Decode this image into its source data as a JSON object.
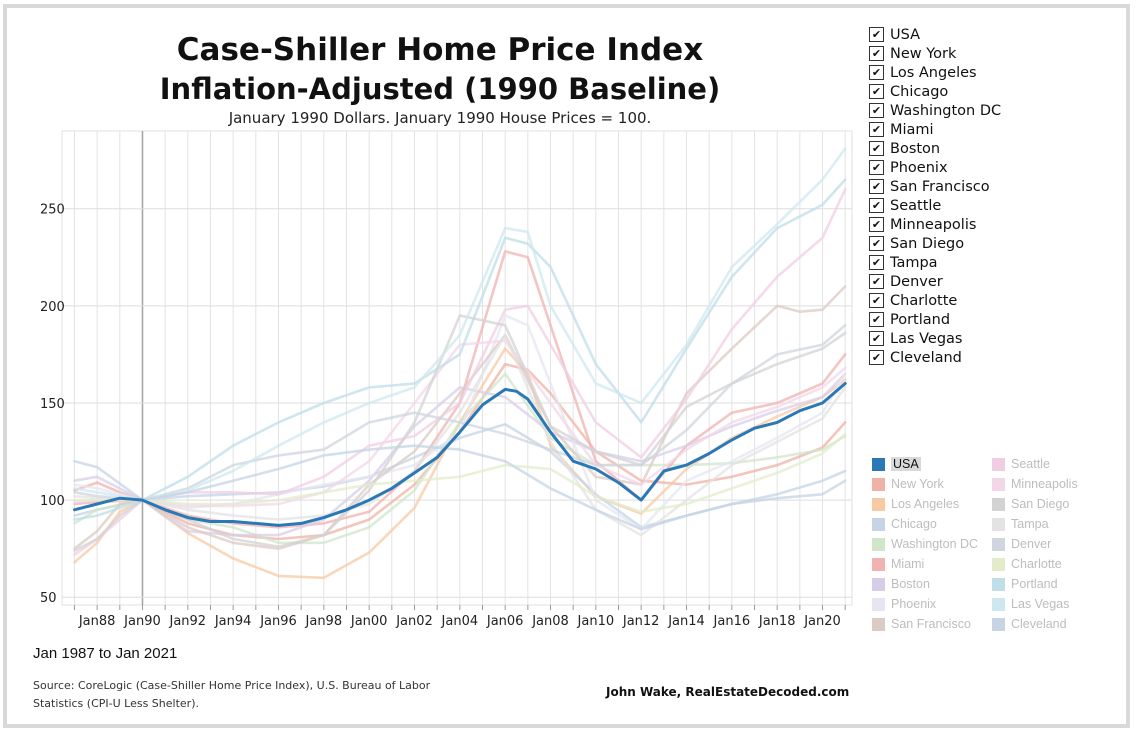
{
  "title_line1": "Case-Shiller Home Price Index",
  "title_line2": "Inflation-Adjusted (1990 Baseline)",
  "subtitle": "January 1990 Dollars. January 1990 House Prices = 100.",
  "date_range": "Jan 1987 to Jan 2021",
  "source": "Source: CoreLogic (Case-Shiller Home Price Index), U.S. Bureau of Labor Statistics (CPI-U Less Shelter).",
  "credit": "John Wake, RealEstateDecoded.com",
  "filter_items": [
    "USA",
    "New York",
    "Los Angeles",
    "Chicago",
    "Washington DC",
    "Miami",
    "Boston",
    "Phoenix",
    "San Francisco",
    "Seattle",
    "Minneapolis",
    "San Diego",
    "Tampa",
    "Denver",
    "Charlotte",
    "Portland",
    "Las Vegas",
    "Cleveland"
  ],
  "check_glyph": "✔",
  "highlighted_series": "USA",
  "colors": {
    "USA": "#2a78b5",
    "New York": "#f0b1a6",
    "Los Angeles": "#f7c9a4",
    "Chicago": "#c6d4e6",
    "Washington DC": "#cfe6c9",
    "Miami": "#f2b2b2",
    "Boston": "#d8cde8",
    "Phoenix": "#e6e6f2",
    "San Francisco": "#dccbc4",
    "Seattle": "#f0cde3",
    "Minneapolis": "#f3d7e8",
    "San Diego": "#d3d3d3",
    "Tampa": "#e3e3e3",
    "Denver": "#cfd6df",
    "Charlotte": "#e2ecc9",
    "Portland": "#bfdee9",
    "Las Vegas": "#cde8ef",
    "Cleveland": "#c6d4e6"
  },
  "chart_data": {
    "type": "line",
    "title": "Case-Shiller Home Price Index Inflation-Adjusted (1990 Baseline)",
    "subtitle": "January 1990 Dollars. January 1990 House Prices = 100.",
    "xlim": [
      1987.0,
      2021.0
    ],
    "ylim": [
      50,
      290
    ],
    "yticks": [
      50,
      100,
      150,
      200,
      250
    ],
    "xticks": [
      {
        "x": 1988,
        "label": "Jan88"
      },
      {
        "x": 1990,
        "label": "Jan90"
      },
      {
        "x": 1992,
        "label": "Jan92"
      },
      {
        "x": 1994,
        "label": "Jan94"
      },
      {
        "x": 1996,
        "label": "Jan96"
      },
      {
        "x": 1998,
        "label": "Jan98"
      },
      {
        "x": 2000,
        "label": "Jan00"
      },
      {
        "x": 2002,
        "label": "Jan02"
      },
      {
        "x": 2004,
        "label": "Jan04"
      },
      {
        "x": 2006,
        "label": "Jan06"
      },
      {
        "x": 2008,
        "label": "Jan08"
      },
      {
        "x": 2010,
        "label": "Jan10"
      },
      {
        "x": 2012,
        "label": "Jan12"
      },
      {
        "x": 2014,
        "label": "Jan14"
      },
      {
        "x": 2016,
        "label": "Jan16"
      },
      {
        "x": 2018,
        "label": "Jan18"
      },
      {
        "x": 2020,
        "label": "Jan20"
      }
    ],
    "reference_line_x": 1990,
    "grid": true,
    "legend_position": "right",
    "series": [
      {
        "name": "USA",
        "x": [
          1987,
          1988,
          1989,
          1990,
          1991,
          1992,
          1993,
          1994,
          1995,
          1996,
          1997,
          1998,
          1999,
          2000,
          2001,
          2002,
          2003,
          2004,
          2005,
          2006,
          2006.5,
          2007,
          2008,
          2009,
          2010,
          2011,
          2012,
          2013,
          2014,
          2015,
          2016,
          2017,
          2018,
          2019,
          2020,
          2021
        ],
        "values": [
          95,
          98,
          101,
          100,
          95,
          91,
          89,
          89,
          88,
          87,
          88,
          91,
          95,
          100,
          106,
          114,
          122,
          135,
          149,
          157,
          156,
          152,
          135,
          120,
          116,
          109,
          100,
          115,
          118,
          124,
          131,
          137,
          140,
          146,
          150,
          160
        ]
      },
      {
        "name": "New York",
        "x": [
          1987,
          1988,
          1989,
          1990,
          1992,
          1994,
          1996,
          1998,
          2000,
          2002,
          2004,
          2006,
          2007,
          2008,
          2010,
          2012,
          2014,
          2016,
          2018,
          2020,
          2021
        ],
        "values": [
          105,
          109,
          104,
          100,
          88,
          82,
          80,
          82,
          90,
          108,
          135,
          170,
          167,
          155,
          125,
          110,
          108,
          112,
          118,
          127,
          140
        ]
      },
      {
        "name": "Los Angeles",
        "x": [
          1987,
          1988,
          1989,
          1990,
          1992,
          1994,
          1996,
          1998,
          2000,
          2002,
          2004,
          2006,
          2007,
          2008,
          2010,
          2012,
          2014,
          2016,
          2018,
          2020,
          2021
        ],
        "values": [
          68,
          78,
          94,
          100,
          83,
          70,
          61,
          60,
          73,
          96,
          140,
          178,
          165,
          128,
          102,
          93,
          116,
          132,
          143,
          153,
          162
        ]
      },
      {
        "name": "Chicago",
        "x": [
          1987,
          1988,
          1990,
          1992,
          1994,
          1996,
          1998,
          2000,
          2002,
          2004,
          2006,
          2008,
          2010,
          2012,
          2014,
          2016,
          2018,
          2020,
          2021
        ],
        "values": [
          92,
          95,
          100,
          102,
          103,
          104,
          107,
          112,
          122,
          132,
          139,
          125,
          103,
          86,
          92,
          98,
          101,
          103,
          110
        ]
      },
      {
        "name": "Washington DC",
        "x": [
          1987,
          1988,
          1990,
          1992,
          1994,
          1996,
          1998,
          2000,
          2002,
          2004,
          2006,
          2008,
          2010,
          2012,
          2014,
          2016,
          2018,
          2020,
          2021
        ],
        "values": [
          88,
          95,
          100,
          90,
          86,
          78,
          78,
          86,
          105,
          140,
          165,
          132,
          118,
          118,
          118,
          119,
          122,
          126,
          133
        ]
      },
      {
        "name": "Miami",
        "x": [
          1987,
          1988,
          1990,
          1992,
          1994,
          1996,
          1998,
          2000,
          2002,
          2004,
          2006,
          2007,
          2008,
          2010,
          2012,
          2014,
          2016,
          2018,
          2020,
          2021
        ],
        "values": [
          98,
          99,
          100,
          92,
          88,
          86,
          88,
          94,
          115,
          150,
          228,
          225,
          190,
          120,
          100,
          128,
          145,
          150,
          160,
          175
        ]
      },
      {
        "name": "Boston",
        "x": [
          1987,
          1988,
          1990,
          1992,
          1994,
          1996,
          1998,
          2000,
          2002,
          2004,
          2006,
          2008,
          2010,
          2012,
          2014,
          2016,
          2018,
          2020,
          2021
        ],
        "values": [
          110,
          112,
          100,
          84,
          82,
          82,
          90,
          110,
          138,
          158,
          153,
          135,
          125,
          120,
          128,
          138,
          146,
          153,
          165
        ]
      },
      {
        "name": "Phoenix",
        "x": [
          1987,
          1988,
          1990,
          1992,
          1994,
          1996,
          1998,
          2000,
          2002,
          2004,
          2006,
          2007,
          2008,
          2010,
          2012,
          2014,
          2016,
          2018,
          2020,
          2021
        ],
        "values": [
          108,
          106,
          100,
          96,
          98,
          103,
          108,
          112,
          118,
          135,
          195,
          190,
          160,
          100,
          85,
          110,
          120,
          132,
          145,
          165
        ]
      },
      {
        "name": "San Francisco",
        "x": [
          1987,
          1988,
          1989,
          1990,
          1992,
          1994,
          1996,
          1998,
          2000,
          2002,
          2004,
          2006,
          2008,
          2010,
          2012,
          2014,
          2016,
          2018,
          2019,
          2020,
          2021
        ],
        "values": [
          75,
          84,
          98,
          100,
          86,
          78,
          75,
          82,
          108,
          125,
          155,
          185,
          138,
          112,
          108,
          155,
          178,
          200,
          197,
          198,
          210
        ]
      },
      {
        "name": "Seattle",
        "x": [
          1987,
          1988,
          1990,
          1992,
          1994,
          1996,
          1998,
          2000,
          2002,
          2004,
          2006,
          2007,
          2008,
          2010,
          2012,
          2014,
          2016,
          2018,
          2020,
          2021
        ],
        "values": [
          72,
          80,
          100,
          104,
          104,
          103,
          112,
          128,
          133,
          150,
          198,
          200,
          180,
          140,
          122,
          152,
          188,
          215,
          235,
          260
        ]
      },
      {
        "name": "Minneapolis",
        "x": [
          1987,
          1988,
          1990,
          1992,
          1994,
          1996,
          1998,
          2000,
          2002,
          2004,
          2006,
          2008,
          2010,
          2012,
          2014,
          2016,
          2018,
          2020,
          2021
        ],
        "values": [
          99,
          100,
          100,
          97,
          97,
          98,
          104,
          120,
          150,
          180,
          182,
          150,
          118,
          108,
          126,
          140,
          148,
          158,
          168
        ]
      },
      {
        "name": "San Diego",
        "x": [
          1987,
          1988,
          1989,
          1990,
          1992,
          1994,
          1996,
          1998,
          2000,
          2002,
          2004,
          2006,
          2008,
          2010,
          2012,
          2014,
          2016,
          2018,
          2020,
          2021
        ],
        "values": [
          74,
          80,
          92,
          100,
          90,
          80,
          76,
          82,
          105,
          140,
          195,
          190,
          138,
          125,
          118,
          148,
          160,
          170,
          178,
          186
        ]
      },
      {
        "name": "Tampa",
        "x": [
          1987,
          1988,
          1990,
          1992,
          1994,
          1996,
          1998,
          2000,
          2002,
          2004,
          2006,
          2008,
          2010,
          2012,
          2014,
          2016,
          2018,
          2020,
          2021
        ],
        "values": [
          102,
          101,
          100,
          95,
          92,
          90,
          92,
          98,
          115,
          145,
          185,
          130,
          95,
          82,
          100,
          118,
          130,
          142,
          158
        ]
      },
      {
        "name": "Denver",
        "x": [
          1987,
          1988,
          1990,
          1992,
          1994,
          1996,
          1998,
          2000,
          2002,
          2004,
          2006,
          2008,
          2010,
          2012,
          2014,
          2016,
          2018,
          2020,
          2021
        ],
        "values": [
          104,
          102,
          100,
          106,
          118,
          123,
          126,
          140,
          145,
          140,
          134,
          126,
          118,
          118,
          136,
          160,
          175,
          180,
          190
        ]
      },
      {
        "name": "Charlotte",
        "x": [
          1987,
          1988,
          1990,
          1992,
          1994,
          1996,
          1998,
          2000,
          2002,
          2004,
          2006,
          2008,
          2010,
          2012,
          2014,
          2016,
          2018,
          2020,
          2021
        ],
        "values": [
          100,
          100,
          100,
          98,
          98,
          100,
          104,
          108,
          110,
          112,
          118,
          116,
          102,
          94,
          98,
          106,
          114,
          124,
          134
        ]
      },
      {
        "name": "Portland",
        "x": [
          1987,
          1988,
          1990,
          1992,
          1994,
          1996,
          1998,
          2000,
          2002,
          2004,
          2006,
          2007,
          2008,
          2010,
          2012,
          2014,
          2016,
          2018,
          2020,
          2021
        ],
        "values": [
          90,
          92,
          100,
          112,
          128,
          140,
          150,
          158,
          160,
          175,
          235,
          232,
          220,
          170,
          140,
          178,
          215,
          240,
          252,
          265
        ]
      },
      {
        "name": "Las Vegas",
        "x": [
          1987,
          1988,
          1990,
          1992,
          1994,
          1996,
          1998,
          2000,
          2002,
          2004,
          2006,
          2007,
          2008,
          2010,
          2012,
          2014,
          2016,
          2018,
          2020,
          2021
        ],
        "values": [
          106,
          104,
          100,
          105,
          115,
          128,
          140,
          150,
          158,
          185,
          240,
          238,
          200,
          160,
          150,
          180,
          220,
          242,
          265,
          281
        ]
      },
      {
        "name": "Cleveland",
        "x": [
          1987,
          1988,
          1990,
          1992,
          1994,
          1996,
          1998,
          2000,
          2002,
          2004,
          2006,
          2008,
          2010,
          2012,
          2014,
          2016,
          2018,
          2020,
          2021
        ],
        "values": [
          120,
          117,
          100,
          104,
          110,
          116,
          123,
          126,
          128,
          126,
          120,
          106,
          95,
          85,
          92,
          98,
          103,
          110,
          115
        ]
      }
    ]
  }
}
